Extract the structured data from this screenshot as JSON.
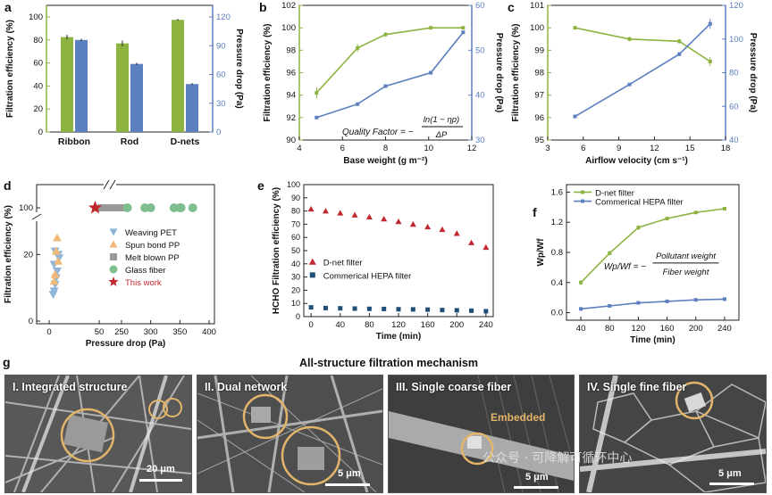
{
  "colors": {
    "green": "#8db441",
    "blue": "#5b7fbf",
    "red": "#c0282d",
    "teal": "#1f4e79",
    "tan": "#e3b56a",
    "gray": "#9a9a9a",
    "lightblue": "#8eb4d8",
    "sand": "#f0b97a",
    "sem_bg": "#5a5a5a"
  },
  "panel_labels": [
    "a",
    "b",
    "c",
    "d",
    "e",
    "f",
    "g"
  ],
  "chart_data": [
    {
      "panel": "a",
      "type": "bar",
      "categories": [
        "Ribbon",
        "Rod",
        "D-nets"
      ],
      "series": [
        {
          "name": "Filtration efficiency",
          "axis": "left",
          "values": [
            82.5,
            77,
            97.5
          ],
          "errors": [
            2,
            2.5,
            0.8
          ]
        },
        {
          "name": "Pressure drop",
          "axis": "right",
          "values": [
            96,
            71,
            50
          ],
          "errors": [
            1.2,
            1.2,
            1
          ]
        }
      ],
      "ylabel": "Filtration efficiency (%)",
      "y2label": "Pressure drop (Pa)",
      "ylim": [
        0,
        100
      ],
      "y2lim": [
        0,
        120
      ],
      "yticks": [
        "0",
        "20",
        "40",
        "60",
        "80",
        "100"
      ],
      "y2ticks": [
        "0",
        "30",
        "60",
        "90",
        "120"
      ]
    },
    {
      "panel": "b",
      "type": "line",
      "x": [
        4.8,
        6.7,
        8,
        10.1,
        11.6
      ],
      "series": [
        {
          "name": "Filtration efficiency",
          "axis": "left",
          "values": [
            94.2,
            98.2,
            99.4,
            100,
            100
          ],
          "errors": [
            0.5,
            0.35,
            0.2,
            0,
            0
          ]
        },
        {
          "name": "Pressure drop",
          "axis": "right",
          "values": [
            35,
            38,
            42,
            45,
            54
          ],
          "errors": [
            0,
            0,
            0,
            0,
            0
          ]
        }
      ],
      "xlabel": "Base weight (g m⁻²)",
      "ylabel": "Filtration efficiency (%)",
      "y2label": "Pressure drop (Pa)",
      "xlim": [
        4,
        12
      ],
      "ylim": [
        90,
        102
      ],
      "y2lim": [
        30,
        60
      ],
      "xticks": [
        "4",
        "6",
        "8",
        "10",
        "12"
      ],
      "yticks": [
        "90",
        "92",
        "94",
        "96",
        "98",
        "100",
        "102"
      ],
      "y2ticks": [
        "30",
        "40",
        "50",
        "60"
      ],
      "annotation": "Quality Factor = −",
      "annotation_num": "ln(1 − ηp)",
      "annotation_den": "ΔP"
    },
    {
      "panel": "c",
      "type": "line",
      "x": [
        5.3,
        9.9,
        14.1,
        16.7
      ],
      "series": [
        {
          "name": "Filtration efficiency",
          "axis": "left",
          "values": [
            100,
            99.5,
            99.4,
            98.5
          ],
          "errors": [
            0,
            0.1,
            0.1,
            0.2
          ]
        },
        {
          "name": "Pressure drop",
          "axis": "right",
          "values": [
            54,
            73,
            91,
            109
          ],
          "errors": [
            0,
            0,
            1,
            3
          ]
        }
      ],
      "xlabel": "Airflow velocity (cm s⁻¹)",
      "ylabel": "Filtration efficiency (%)",
      "y2label": "Pressure drop (Pa)",
      "xlim": [
        3,
        18
      ],
      "ylim": [
        95,
        101
      ],
      "y2lim": [
        40,
        120
      ],
      "xticks": [
        "3",
        "6",
        "9",
        "12",
        "15",
        "18"
      ],
      "yticks": [
        "95",
        "96",
        "97",
        "98",
        "99",
        "100",
        "101"
      ],
      "y2ticks": [
        "40",
        "60",
        "80",
        "100",
        "120"
      ]
    },
    {
      "panel": "d",
      "type": "scatter",
      "xlabel": "Pressure drop (Pa)",
      "ylabel": "Filtration efficiency (%)",
      "xticks": [
        "0",
        "50",
        "250",
        "300",
        "350",
        "400"
      ],
      "yticks": [
        "0",
        "20",
        "100"
      ],
      "series": [
        {
          "name": "Weaving PET",
          "marker": "triangle-down",
          "points": [
            [
              4,
              8
            ],
            [
              5,
              9
            ],
            [
              6,
              11
            ],
            [
              7,
              13
            ],
            [
              8,
              15
            ],
            [
              5,
              17
            ],
            [
              9,
              20
            ],
            [
              6,
              21
            ],
            [
              10,
              19
            ]
          ]
        },
        {
          "name": "Spun bond PP",
          "marker": "triangle-up",
          "points": [
            [
              8,
              25
            ],
            [
              7,
              21
            ],
            [
              9,
              18
            ],
            [
              6,
              14
            ],
            [
              5,
              12
            ]
          ]
        },
        {
          "name": "Melt blown PP",
          "marker": "square",
          "points": [
            [
              52,
              100
            ],
            [
              57,
              100
            ],
            [
              62,
              100
            ],
            [
              67,
              100
            ],
            [
              72,
              100
            ],
            [
              77,
              100
            ]
          ]
        },
        {
          "name": "Glass fiber",
          "marker": "circle",
          "points": [
            [
              260,
              100
            ],
            [
              290,
              100
            ],
            [
              300,
              100
            ],
            [
              340,
              100
            ],
            [
              350,
              100
            ],
            [
              352,
              100
            ],
            [
              372,
              100
            ]
          ]
        },
        {
          "name": "This work",
          "marker": "star",
          "points": [
            [
              46,
              100
            ]
          ]
        }
      ]
    },
    {
      "panel": "e",
      "type": "scatter",
      "x": [
        0,
        20,
        40,
        60,
        80,
        100,
        120,
        140,
        160,
        180,
        200,
        220,
        240
      ],
      "series": [
        {
          "name": "D-net filter",
          "marker": "triangle-up",
          "values": [
            81.5,
            80,
            78.5,
            77,
            75.5,
            74,
            72,
            70,
            68,
            66,
            63,
            56,
            52.5
          ]
        },
        {
          "name": "Commerical HEPA filter",
          "marker": "square",
          "values": [
            7,
            6.5,
            6.3,
            6.1,
            5.9,
            5.8,
            5.6,
            5.5,
            5.3,
            5,
            4.8,
            4.5,
            4.1
          ]
        }
      ],
      "xlabel": "Time (min)",
      "ylabel": "HCHO Filtration efficiency (%)",
      "xlim": [
        -10,
        250
      ],
      "ylim": [
        0,
        100
      ],
      "xticks": [
        "0",
        "40",
        "80",
        "120",
        "160",
        "200",
        "240"
      ],
      "yticks": [
        "0",
        "10",
        "20",
        "30",
        "40",
        "50",
        "60",
        "70",
        "80",
        "90",
        "100"
      ]
    },
    {
      "panel": "f",
      "type": "line",
      "x": [
        40,
        80,
        120,
        160,
        200,
        240
      ],
      "series": [
        {
          "name": "D-net filter",
          "values": [
            0.4,
            0.79,
            1.13,
            1.25,
            1.33,
            1.38
          ],
          "errors": [
            0.03,
            0.03,
            0.03,
            0.02,
            0.02,
            0.01
          ]
        },
        {
          "name": "Commerical HEPA filter",
          "values": [
            0.05,
            0.09,
            0.13,
            0.15,
            0.17,
            0.18
          ],
          "errors": [
            0,
            0,
            0,
            0,
            0,
            0
          ]
        }
      ],
      "xlabel": "Time (min)",
      "ylabel": "Wp/Wf",
      "xlim": [
        20,
        260
      ],
      "ylim": [
        -0.1,
        1.7
      ],
      "xticks": [
        "40",
        "80",
        "120",
        "160",
        "200",
        "240"
      ],
      "yticks": [
        "0.0",
        "0.4",
        "0.8",
        "1.2",
        "1.6"
      ],
      "annotation": "Wp/Wf = −",
      "annotation_num": "Pollutant weight",
      "annotation_den": "Fiber weight"
    }
  ],
  "sem": {
    "title": "All-structure filtration mechanism",
    "panels": [
      {
        "label": "I. Integrated structure",
        "scale": "20 μm"
      },
      {
        "label": "II. Dual network",
        "scale": "5 μm"
      },
      {
        "label": "III. Single coarse fiber",
        "scale": "5 μm",
        "note": "Embedded"
      },
      {
        "label": "IV. Single fine fiber",
        "scale": "5 μm"
      }
    ],
    "watermark": "公众号 · 可降解可循环中心"
  }
}
